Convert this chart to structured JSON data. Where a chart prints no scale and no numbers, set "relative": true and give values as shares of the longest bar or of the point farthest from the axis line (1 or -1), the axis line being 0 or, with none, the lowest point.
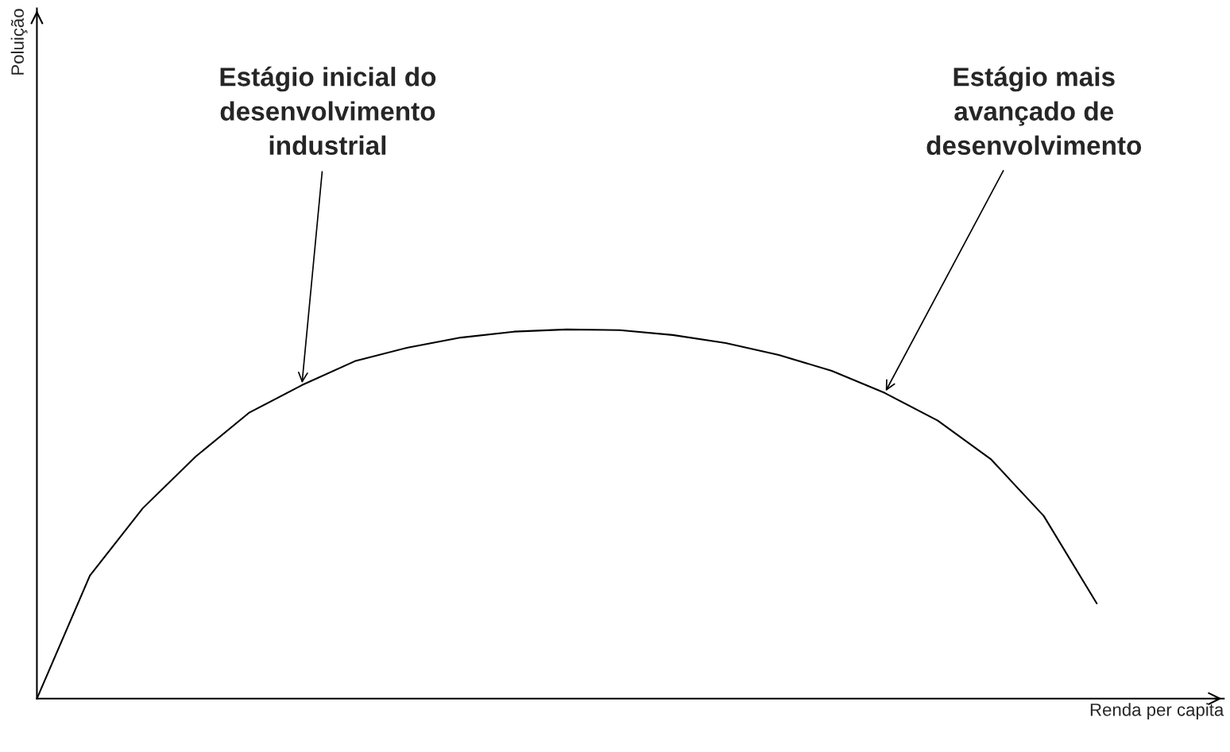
{
  "chart_data": {
    "type": "line",
    "relative": true,
    "xlabel": "Renda per capita",
    "categories": [
      null,
      null,
      null,
      null,
      null,
      null,
      null,
      null,
      null,
      null,
      null,
      null,
      null,
      null,
      null,
      null,
      null,
      null,
      null,
      null,
      null
    ],
    "series": [
      {
        "color": "#000000",
        "values": [
          0,
          0.333,
          0.516,
          0.656,
          0.774,
          0.849,
          0.914,
          0.951,
          0.978,
          0.994,
          1,
          0.998,
          0.985,
          0.963,
          0.931,
          0.888,
          0.828,
          0.753,
          0.649,
          0.495,
          0.258
        ]
      }
    ],
    "annotations": [
      "Estágio inicial do\ndesenvolvimento\nindustrial",
      "Estágio mais\navançado de\ndesenvolvimento",
      "Poluição"
    ],
    "marker": "none",
    "line_style": "solid"
  }
}
